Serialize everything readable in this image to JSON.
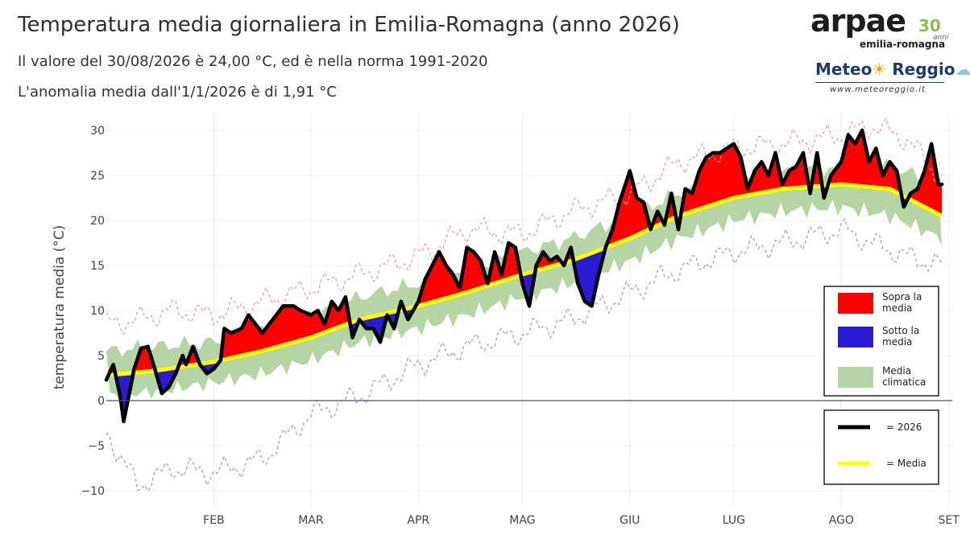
{
  "title": "Temperatura media giornaliera in Emilia-Romagna (anno 2026)",
  "subtitle1": "Il valore del 30/08/2026 è 24,00 °C, ed è nella norma 1991-2020",
  "subtitle2": "L'anomalia media dall'1/1/2026 è di 1,91 °C",
  "logos": {
    "arpae_word": "arpae",
    "arpae_30": "30",
    "arpae_anni": "anni",
    "arpae_region": "emilia-romagna",
    "meteo_name_1": "Meteo",
    "meteo_name_2": "Reggio",
    "meteo_url": "www.meteoreggio.it"
  },
  "colors": {
    "above": "#ff0000",
    "below": "#2a1ad4",
    "climate_band": "#b5d6a4",
    "current": "#000000",
    "mean": "#ffff00",
    "record_max": "#f3a3a3",
    "record_min": "#a3a3f0"
  },
  "chart_data": {
    "type": "line",
    "title": "Temperatura media giornaliera in Emilia-Romagna (anno 2026)",
    "xlabel": "",
    "ylabel": "temperatura media (°C)",
    "xlim": [
      "2026-01-01",
      "2026-09-02"
    ],
    "ylim": [
      -11,
      32
    ],
    "y_ticks": [
      -10,
      -5,
      0,
      5,
      10,
      15,
      20,
      25,
      30
    ],
    "x_ticks": [
      {
        "label": "FEB",
        "date": "2026-02-01"
      },
      {
        "label": "MAR",
        "date": "2026-03-01"
      },
      {
        "label": "APR",
        "date": "2026-04-01"
      },
      {
        "label": "MAG",
        "date": "2026-05-01"
      },
      {
        "label": "GIU",
        "date": "2026-06-01"
      },
      {
        "label": "LUG",
        "date": "2026-07-01"
      },
      {
        "label": "AGO",
        "date": "2026-08-01"
      },
      {
        "label": "SET",
        "date": "2026-09-01"
      }
    ],
    "grid": true,
    "legend_placement": "right",
    "legend": [
      {
        "key": "above",
        "label_lines": [
          "Sopra la",
          "media"
        ]
      },
      {
        "key": "below",
        "label_lines": [
          "Sotto la",
          "media"
        ]
      },
      {
        "key": "climate_band",
        "label_lines": [
          "Media",
          "climatica"
        ]
      },
      {
        "key": "current",
        "label_lines": [
          "= 2026"
        ]
      },
      {
        "key": "mean",
        "label_lines": [
          "= Media"
        ]
      }
    ],
    "series": [
      {
        "key": "current",
        "dates": [
          "2026-01-01",
          "2026-01-03",
          "2026-01-05",
          "2026-01-06",
          "2026-01-08",
          "2026-01-09",
          "2026-01-11",
          "2026-01-13",
          "2026-01-15",
          "2026-01-17",
          "2026-01-19",
          "2026-01-21",
          "2026-01-23",
          "2026-01-24",
          "2026-01-26",
          "2026-01-28",
          "2026-01-30",
          "2026-02-01",
          "2026-02-03",
          "2026-02-04",
          "2026-02-06",
          "2026-02-09",
          "2026-02-11",
          "2026-02-13",
          "2026-02-15",
          "2026-02-17",
          "2026-02-19",
          "2026-02-21",
          "2026-02-24",
          "2026-02-26",
          "2026-03-01",
          "2026-03-03",
          "2026-03-05",
          "2026-03-07",
          "2026-03-09",
          "2026-03-11",
          "2026-03-13",
          "2026-03-15",
          "2026-03-17",
          "2026-03-19",
          "2026-03-21",
          "2026-03-23",
          "2026-03-25",
          "2026-03-27",
          "2026-03-29",
          "2026-04-01",
          "2026-04-03",
          "2026-04-05",
          "2026-04-07",
          "2026-04-09",
          "2026-04-11",
          "2026-04-13",
          "2026-04-15",
          "2026-04-17",
          "2026-04-19",
          "2026-04-21",
          "2026-04-23",
          "2026-04-25",
          "2026-04-27",
          "2026-04-29",
          "2026-05-01",
          "2026-05-03",
          "2026-05-05",
          "2026-05-07",
          "2026-05-09",
          "2026-05-11",
          "2026-05-13",
          "2026-05-15",
          "2026-05-17",
          "2026-05-19",
          "2026-05-21",
          "2026-05-23",
          "2026-05-25",
          "2026-05-27",
          "2026-05-29",
          "2026-06-01",
          "2026-06-03",
          "2026-06-05",
          "2026-06-07",
          "2026-06-09",
          "2026-06-11",
          "2026-06-13",
          "2026-06-15",
          "2026-06-17",
          "2026-06-19",
          "2026-06-21",
          "2026-06-23",
          "2026-06-25",
          "2026-06-27",
          "2026-06-29",
          "2026-07-01",
          "2026-07-03",
          "2026-07-05",
          "2026-07-07",
          "2026-07-09",
          "2026-07-11",
          "2026-07-13",
          "2026-07-15",
          "2026-07-17",
          "2026-07-19",
          "2026-07-21",
          "2026-07-23",
          "2026-07-25",
          "2026-07-27",
          "2026-07-29",
          "2026-08-01",
          "2026-08-03",
          "2026-08-05",
          "2026-08-07",
          "2026-08-09",
          "2026-08-11",
          "2026-08-13",
          "2026-08-15",
          "2026-08-17",
          "2026-08-19",
          "2026-08-21",
          "2026-08-23",
          "2026-08-25",
          "2026-08-27",
          "2026-08-29",
          "2026-08-30"
        ],
        "values": [
          2.3,
          4.0,
          0.5,
          -2.3,
          1.5,
          3.5,
          5.8,
          6.0,
          3.5,
          0.8,
          1.5,
          3.0,
          5.0,
          4.0,
          6.0,
          4.0,
          3.0,
          3.5,
          4.5,
          8.0,
          7.5,
          8.0,
          9.5,
          8.5,
          7.5,
          8.5,
          9.5,
          10.5,
          10.5,
          10.0,
          9.5,
          10.0,
          8.5,
          11.0,
          10.0,
          11.5,
          7.0,
          9.0,
          8.0,
          8.0,
          6.5,
          9.5,
          8.0,
          11.0,
          9.0,
          11.0,
          13.5,
          15.0,
          16.5,
          15.0,
          14.0,
          12.5,
          17.0,
          16.5,
          15.5,
          13.0,
          16.5,
          14.0,
          17.5,
          17.0,
          13.0,
          10.5,
          15.0,
          16.5,
          15.5,
          16.0,
          15.0,
          17.0,
          13.0,
          11.0,
          10.5,
          14.0,
          17.0,
          19.0,
          22.0,
          25.5,
          22.5,
          22.0,
          19.0,
          21.0,
          19.5,
          23.0,
          19.0,
          23.5,
          23.0,
          25.5,
          27.0,
          27.5,
          27.5,
          28.0,
          28.5,
          27.0,
          23.5,
          25.5,
          26.5,
          25.0,
          27.5,
          24.0,
          25.5,
          26.0,
          27.5,
          23.0,
          27.5,
          22.5,
          25.0,
          26.5,
          29.5,
          28.5,
          30.0,
          26.5,
          28.0,
          25.0,
          26.5,
          25.5,
          21.5,
          23.0,
          23.5,
          25.5,
          28.5,
          24.0,
          24.0
        ]
      },
      {
        "key": "mean",
        "dates": [
          "2026-01-01",
          "2026-01-15",
          "2026-02-01",
          "2026-02-15",
          "2026-03-01",
          "2026-03-15",
          "2026-04-01",
          "2026-04-15",
          "2026-05-01",
          "2026-05-15",
          "2026-06-01",
          "2026-06-15",
          "2026-07-01",
          "2026-07-15",
          "2026-08-01",
          "2026-08-15",
          "2026-08-30"
        ],
        "values": [
          2.8,
          3.3,
          4.3,
          5.5,
          7.0,
          9.0,
          10.5,
          12.0,
          14.0,
          15.5,
          18.0,
          20.5,
          22.5,
          23.5,
          24.0,
          23.5,
          20.5
        ]
      },
      {
        "key": "climate_band_lower",
        "dates": [
          "2026-01-01",
          "2026-01-15",
          "2026-02-01",
          "2026-02-15",
          "2026-03-01",
          "2026-03-15",
          "2026-04-01",
          "2026-04-15",
          "2026-05-01",
          "2026-05-15",
          "2026-06-01",
          "2026-06-15",
          "2026-07-01",
          "2026-07-15",
          "2026-08-01",
          "2026-08-15",
          "2026-08-30"
        ],
        "values": [
          0.5,
          1.0,
          2.0,
          3.0,
          4.5,
          6.5,
          8.0,
          9.5,
          11.5,
          13.0,
          15.5,
          18.0,
          20.0,
          21.0,
          21.5,
          20.5,
          18.0
        ]
      },
      {
        "key": "climate_band_upper",
        "dates": [
          "2026-01-01",
          "2026-01-15",
          "2026-02-01",
          "2026-02-15",
          "2026-03-01",
          "2026-03-15",
          "2026-04-01",
          "2026-04-15",
          "2026-05-01",
          "2026-05-15",
          "2026-06-01",
          "2026-06-15",
          "2026-07-01",
          "2026-07-15",
          "2026-08-01",
          "2026-08-15",
          "2026-08-30"
        ],
        "values": [
          5.5,
          6.0,
          6.5,
          8.0,
          9.5,
          11.5,
          13.0,
          14.5,
          16.5,
          18.0,
          20.5,
          23.0,
          24.5,
          25.5,
          26.0,
          26.0,
          24.0
        ]
      },
      {
        "key": "record_max",
        "dates": [
          "2026-01-01",
          "2026-01-10",
          "2026-01-20",
          "2026-02-01",
          "2026-02-15",
          "2026-03-01",
          "2026-03-15",
          "2026-04-01",
          "2026-04-15",
          "2026-05-01",
          "2026-05-15",
          "2026-06-01",
          "2026-06-15",
          "2026-07-01",
          "2026-07-15",
          "2026-08-01",
          "2026-08-10",
          "2026-08-20",
          "2026-08-30"
        ],
        "values": [
          8.5,
          9.0,
          10.0,
          9.5,
          11.0,
          12.5,
          14.0,
          16.0,
          19.0,
          18.5,
          21.0,
          23.0,
          26.5,
          28.0,
          28.5,
          29.5,
          30.5,
          29.0,
          24.5
        ]
      },
      {
        "key": "record_min",
        "dates": [
          "2026-01-01",
          "2026-01-10",
          "2026-01-20",
          "2026-02-01",
          "2026-02-15",
          "2026-03-01",
          "2026-03-15",
          "2026-04-01",
          "2026-04-15",
          "2026-05-01",
          "2026-05-15",
          "2026-06-01",
          "2026-06-15",
          "2026-07-01",
          "2026-07-15",
          "2026-08-01",
          "2026-08-10",
          "2026-08-20",
          "2026-08-30"
        ],
        "values": [
          -3.5,
          -9.5,
          -7.5,
          -8.0,
          -6.5,
          -1.5,
          0.5,
          4.0,
          6.0,
          7.5,
          9.0,
          12.0,
          14.5,
          16.5,
          17.5,
          19.0,
          17.5,
          16.0,
          15.0
        ]
      }
    ]
  }
}
